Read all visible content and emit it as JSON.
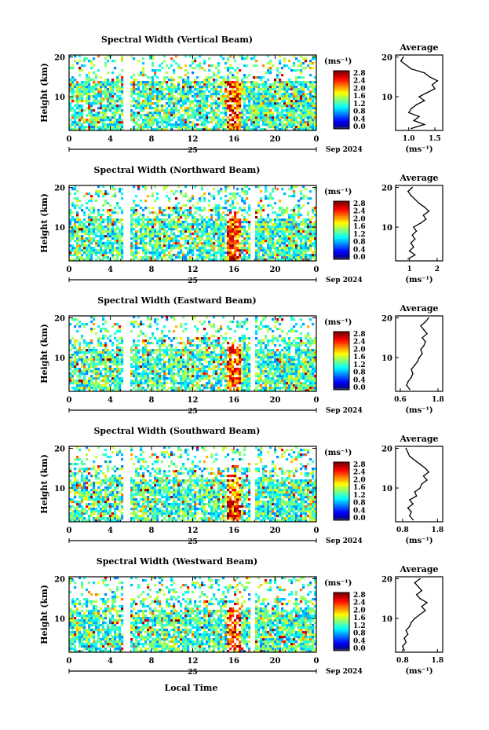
{
  "figure": {
    "x_axis_label": "Local Time",
    "date_label": "25",
    "month_year_label": "Sep 2024",
    "time_ticks": [
      "0",
      "4",
      "8",
      "12",
      "16",
      "20",
      "0"
    ],
    "height_ticks": [
      "20",
      "10"
    ],
    "height_axis_label": "Height (km)",
    "colorbar_unit": "(ms⁻¹)",
    "colorbar_ticks": [
      "2.8",
      "2.4",
      "2.0",
      "1.6",
      "1.2",
      "0.8",
      "0.4",
      "0.0"
    ],
    "average_title": "Average",
    "average_unit": "(ms⁻¹)"
  },
  "chart_data": [
    {
      "type": "heatmap",
      "title": "Spectral Width (Vertical Beam)",
      "xlabel": "",
      "ylabel": "Height (km)",
      "x_range_hours": [
        0,
        24
      ],
      "y_range_km": [
        1.5,
        20.5
      ],
      "color_range_ms": [
        0.0,
        2.8
      ],
      "profile": {
        "title": "Average",
        "xlabel": "(ms⁻¹)",
        "x_ticks": [
          "1.0",
          "1.5"
        ],
        "xlim": [
          0.75,
          1.65
        ],
        "height_km": [
          2,
          3,
          4,
          5,
          6,
          7,
          8,
          9,
          10,
          11,
          12,
          13,
          14,
          15,
          16,
          17,
          18,
          19,
          20
        ],
        "width_ms": [
          1.05,
          1.3,
          1.1,
          1.2,
          1.0,
          1.05,
          1.15,
          1.3,
          1.2,
          1.35,
          1.5,
          1.45,
          1.55,
          1.4,
          1.3,
          1.05,
          0.95,
          0.85,
          0.9
        ]
      }
    },
    {
      "type": "heatmap",
      "title": "Spectral Width (Northward Beam)",
      "xlabel": "",
      "ylabel": "Height (km)",
      "x_range_hours": [
        0,
        24
      ],
      "y_range_km": [
        1.5,
        20.5
      ],
      "color_range_ms": [
        0.0,
        2.8
      ],
      "profile": {
        "title": "Average",
        "xlabel": "(ms⁻¹)",
        "x_ticks": [
          "1",
          "2"
        ],
        "xlim": [
          0.5,
          2.2
        ],
        "height_km": [
          2,
          3,
          4,
          5,
          6,
          7,
          8,
          9,
          10,
          11,
          12,
          13,
          14,
          15,
          16,
          17,
          18,
          19,
          20
        ],
        "width_ms": [
          0.95,
          1.2,
          1.0,
          1.15,
          1.05,
          1.2,
          1.1,
          1.25,
          1.15,
          1.4,
          1.6,
          1.5,
          1.7,
          1.55,
          1.35,
          1.2,
          1.05,
          0.95,
          1.1
        ]
      }
    },
    {
      "type": "heatmap",
      "title": "Spectral Width (Eastward Beam)",
      "xlabel": "",
      "ylabel": "Height (km)",
      "x_range_hours": [
        0,
        24
      ],
      "y_range_km": [
        1.5,
        20.5
      ],
      "color_range_ms": [
        0.0,
        2.8
      ],
      "profile": {
        "title": "Average",
        "xlabel": "(ms⁻¹)",
        "x_ticks": [
          "0.6",
          "1.8"
        ],
        "xlim": [
          0.45,
          1.95
        ],
        "height_km": [
          2,
          3,
          4,
          5,
          6,
          7,
          8,
          9,
          10,
          11,
          12,
          13,
          14,
          15,
          16,
          17,
          18,
          19,
          20
        ],
        "width_ms": [
          0.9,
          0.8,
          0.85,
          0.95,
          1.0,
          0.95,
          1.05,
          1.15,
          1.2,
          1.3,
          1.25,
          1.35,
          1.4,
          1.3,
          1.45,
          1.35,
          1.25,
          1.4,
          1.5
        ]
      }
    },
    {
      "type": "heatmap",
      "title": "Spectral Width (Southward Beam)",
      "xlabel": "",
      "ylabel": "Height (km)",
      "x_range_hours": [
        0,
        24
      ],
      "y_range_km": [
        1.5,
        20.5
      ],
      "color_range_ms": [
        0.0,
        2.8
      ],
      "profile": {
        "title": "Average",
        "xlabel": "(ms⁻¹)",
        "x_ticks": [
          "0.8",
          "1.8"
        ],
        "xlim": [
          0.6,
          1.95
        ],
        "height_km": [
          2,
          3,
          4,
          5,
          6,
          7,
          8,
          9,
          10,
          11,
          12,
          13,
          14,
          15,
          16,
          17,
          18,
          19,
          20
        ],
        "width_ms": [
          1.1,
          1.0,
          1.05,
          0.95,
          1.1,
          1.0,
          1.2,
          1.15,
          1.3,
          1.35,
          1.5,
          1.4,
          1.55,
          1.45,
          1.3,
          1.15,
          1.0,
          0.95,
          0.9
        ]
      }
    },
    {
      "type": "heatmap",
      "title": "Spectral Width (Westward Beam)",
      "xlabel": "Local Time",
      "ylabel": "Height (km)",
      "x_range_hours": [
        0,
        24
      ],
      "y_range_km": [
        1.5,
        20.5
      ],
      "color_range_ms": [
        0.0,
        2.8
      ],
      "profile": {
        "title": "Average",
        "xlabel": "(ms⁻¹)",
        "x_ticks": [
          "0.8",
          "1.8"
        ],
        "xlim": [
          0.6,
          1.95
        ],
        "height_km": [
          2,
          3,
          4,
          5,
          6,
          7,
          8,
          9,
          10,
          11,
          12,
          13,
          14,
          15,
          16,
          17,
          18,
          19,
          20
        ],
        "width_ms": [
          0.85,
          0.8,
          0.9,
          0.85,
          0.95,
          0.9,
          1.0,
          1.05,
          1.15,
          1.3,
          1.45,
          1.35,
          1.5,
          1.3,
          1.2,
          1.35,
          1.25,
          1.15,
          1.3
        ]
      }
    }
  ]
}
